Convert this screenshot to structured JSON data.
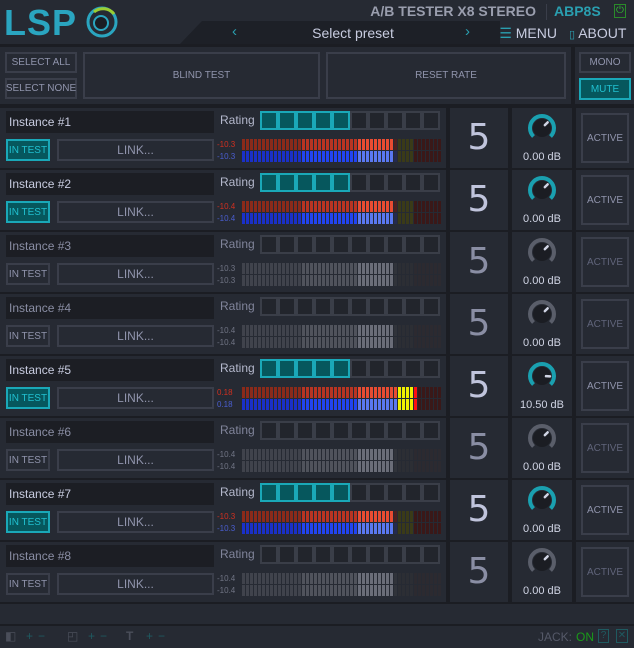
{
  "header": {
    "logo": "LSP",
    "title": "A/B TESTER X8 STEREO",
    "code": "ABP8S",
    "preset": "Select preset",
    "prev": "‹",
    "next": "›",
    "menu": "MENU",
    "about": "ABOUT"
  },
  "controls": {
    "select_all": "SELECT ALL",
    "select_none": "SELECT NONE",
    "blind_test": "BLIND TEST",
    "reset_rate": "RESET RATE",
    "mono": "MONO",
    "mute": "MUTE"
  },
  "rating_label": "Rating",
  "in_test_label": "IN TEST",
  "link_label": "LINK...",
  "active_label": "ACTIVE",
  "colors": {
    "accent": "#1aa8b8",
    "accent_bg": "#06575d"
  },
  "instances": [
    {
      "name": "Instance #1",
      "in_test": true,
      "rating": 5,
      "score": "5",
      "level_l": "-10.3",
      "level_r": "-10.3",
      "gain": "0.00 dB",
      "gain_db": 0
    },
    {
      "name": "Instance #2",
      "in_test": true,
      "rating": 5,
      "score": "5",
      "level_l": "-10.4",
      "level_r": "-10.4",
      "gain": "0.00 dB",
      "gain_db": 0
    },
    {
      "name": "Instance #3",
      "in_test": false,
      "rating": 0,
      "score": "5",
      "level_l": "-10.3",
      "level_r": "-10.3",
      "gain": "0.00 dB",
      "gain_db": 0
    },
    {
      "name": "Instance #4",
      "in_test": false,
      "rating": 0,
      "score": "5",
      "level_l": "-10.4",
      "level_r": "-10.4",
      "gain": "0.00 dB",
      "gain_db": 0
    },
    {
      "name": "Instance #5",
      "in_test": true,
      "rating": 5,
      "score": "5",
      "level_l": "0.18",
      "level_r": "0.18",
      "gain": "10.50 dB",
      "gain_db": 10.5
    },
    {
      "name": "Instance #6",
      "in_test": false,
      "rating": 0,
      "score": "5",
      "level_l": "-10.4",
      "level_r": "-10.4",
      "gain": "0.00 dB",
      "gain_db": 0
    },
    {
      "name": "Instance #7",
      "in_test": true,
      "rating": 5,
      "score": "5",
      "level_l": "-10.3",
      "level_r": "-10.3",
      "gain": "0.00 dB",
      "gain_db": 0
    },
    {
      "name": "Instance #8",
      "in_test": false,
      "rating": 0,
      "score": "5",
      "level_l": "-10.4",
      "level_r": "-10.4",
      "gain": "0.00 dB",
      "gain_db": 0
    }
  ],
  "status": {
    "jack_label": "JACK:",
    "jack_state": "ON",
    "help": "?",
    "plus": "+",
    "minus": "−"
  }
}
